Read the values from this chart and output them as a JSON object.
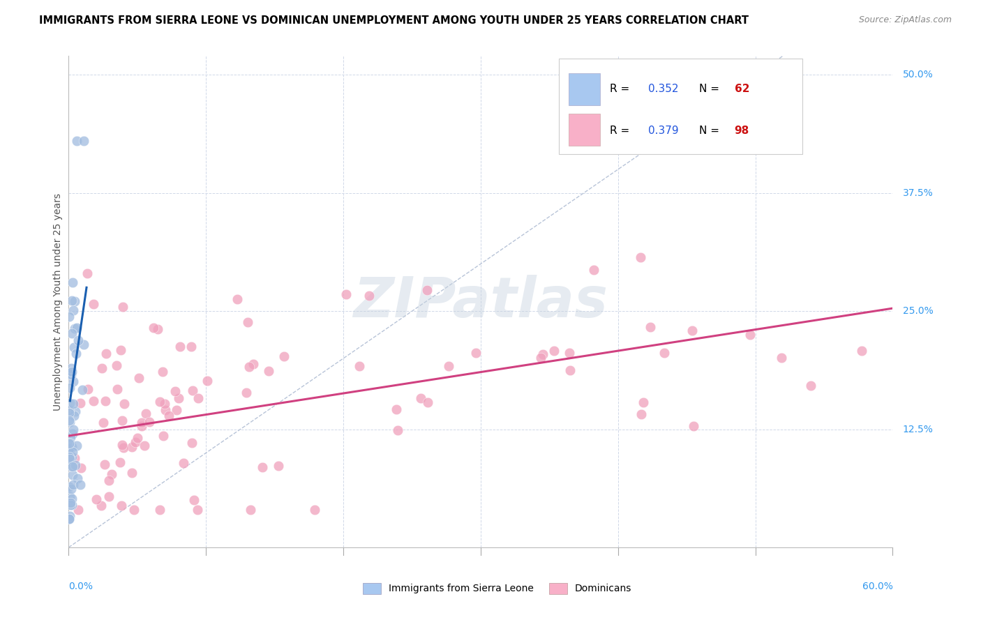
{
  "title": "IMMIGRANTS FROM SIERRA LEONE VS DOMINICAN UNEMPLOYMENT AMONG YOUTH UNDER 25 YEARS CORRELATION CHART",
  "source": "Source: ZipAtlas.com",
  "ylabel": "Unemployment Among Youth under 25 years",
  "xlim": [
    0.0,
    0.6
  ],
  "ylim": [
    0.0,
    0.52
  ],
  "ytick_vals": [
    0.125,
    0.25,
    0.375,
    0.5
  ],
  "ytick_labels": [
    "12.5%",
    "25.0%",
    "37.5%",
    "50.0%"
  ],
  "blue_line_x": [
    0.001,
    0.013
  ],
  "blue_line_y": [
    0.155,
    0.275
  ],
  "pink_line_x": [
    0.0,
    0.6
  ],
  "pink_line_y": [
    0.118,
    0.253
  ],
  "ref_line_x": [
    0.0,
    0.52
  ],
  "ref_line_y": [
    0.0,
    0.52
  ],
  "watermark": "ZIPatlas",
  "blue_color": "#a0bce0",
  "pink_color": "#f0a0bc",
  "blue_line_color": "#1a5fb0",
  "pink_line_color": "#d04080",
  "ref_line_color": "#b8c4d8",
  "legend_R1": "0.352",
  "legend_N1": "62",
  "legend_R2": "0.379",
  "legend_N2": "98",
  "label1": "Immigrants from Sierra Leone",
  "label2": "Dominicans"
}
